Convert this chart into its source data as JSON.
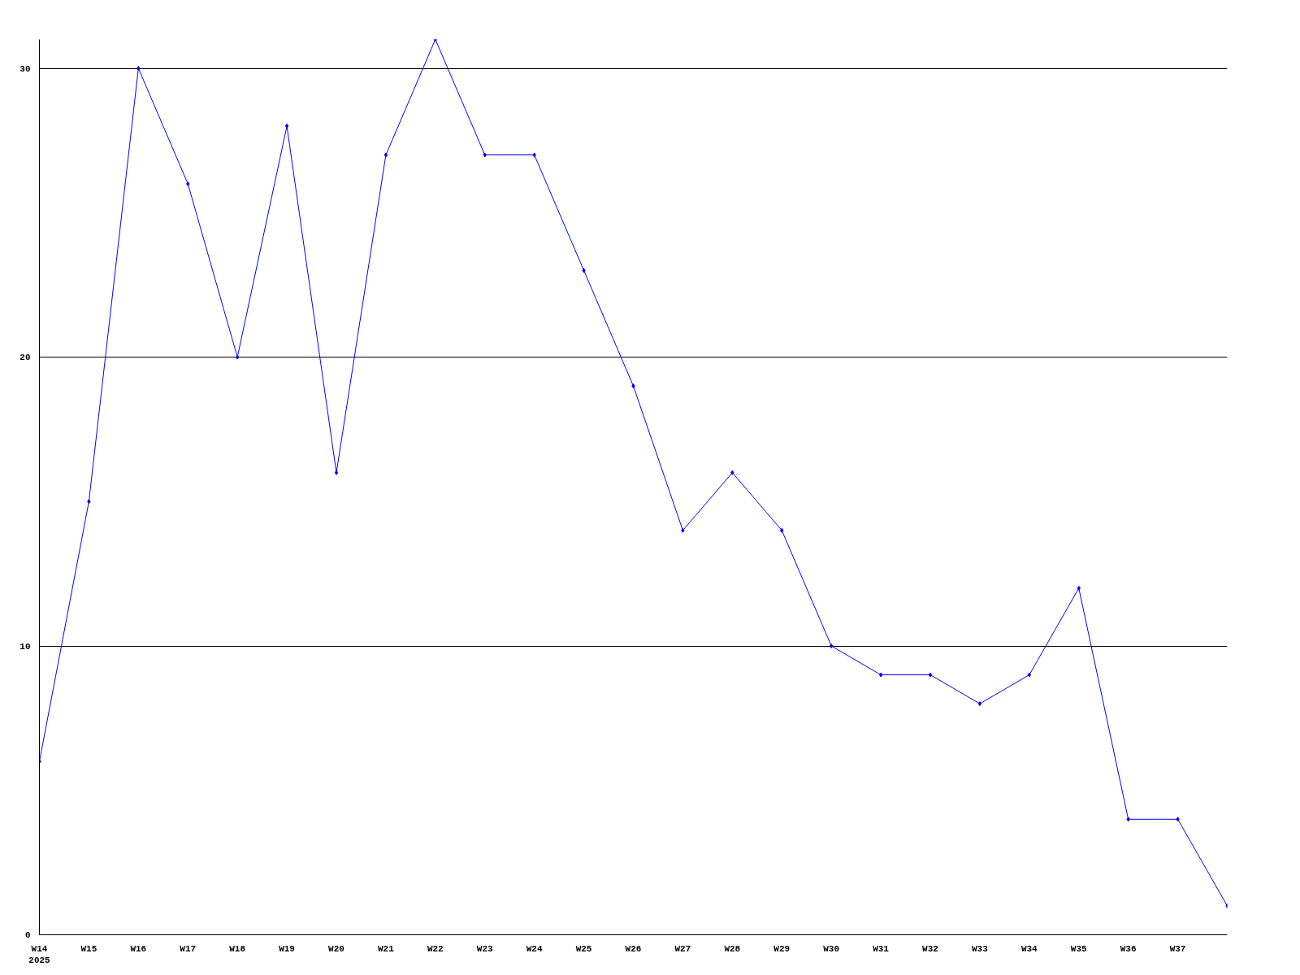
{
  "chart_data": {
    "type": "line",
    "categories": [
      "W14\n2025",
      "W15",
      "W16",
      "W17",
      "W18",
      "W19",
      "W20",
      "W21",
      "W22",
      "W23",
      "W24",
      "W25",
      "W26",
      "W27",
      "W28",
      "W29",
      "W30",
      "W31",
      "W32",
      "W33",
      "W34",
      "W35",
      "W36",
      "W37",
      null
    ],
    "series": [
      {
        "color": "#0000ff",
        "values": [
          6,
          15,
          30,
          26,
          20,
          28,
          16,
          27,
          31,
          27,
          27,
          23,
          19,
          14,
          16,
          14,
          10,
          9,
          9,
          8,
          9,
          12,
          4,
          4,
          1
        ]
      }
    ],
    "ylim": [
      0,
      31
    ],
    "yticks": [
      0,
      10,
      20,
      30
    ],
    "grid": "y",
    "marker": "diamond",
    "line_style": "solid"
  }
}
